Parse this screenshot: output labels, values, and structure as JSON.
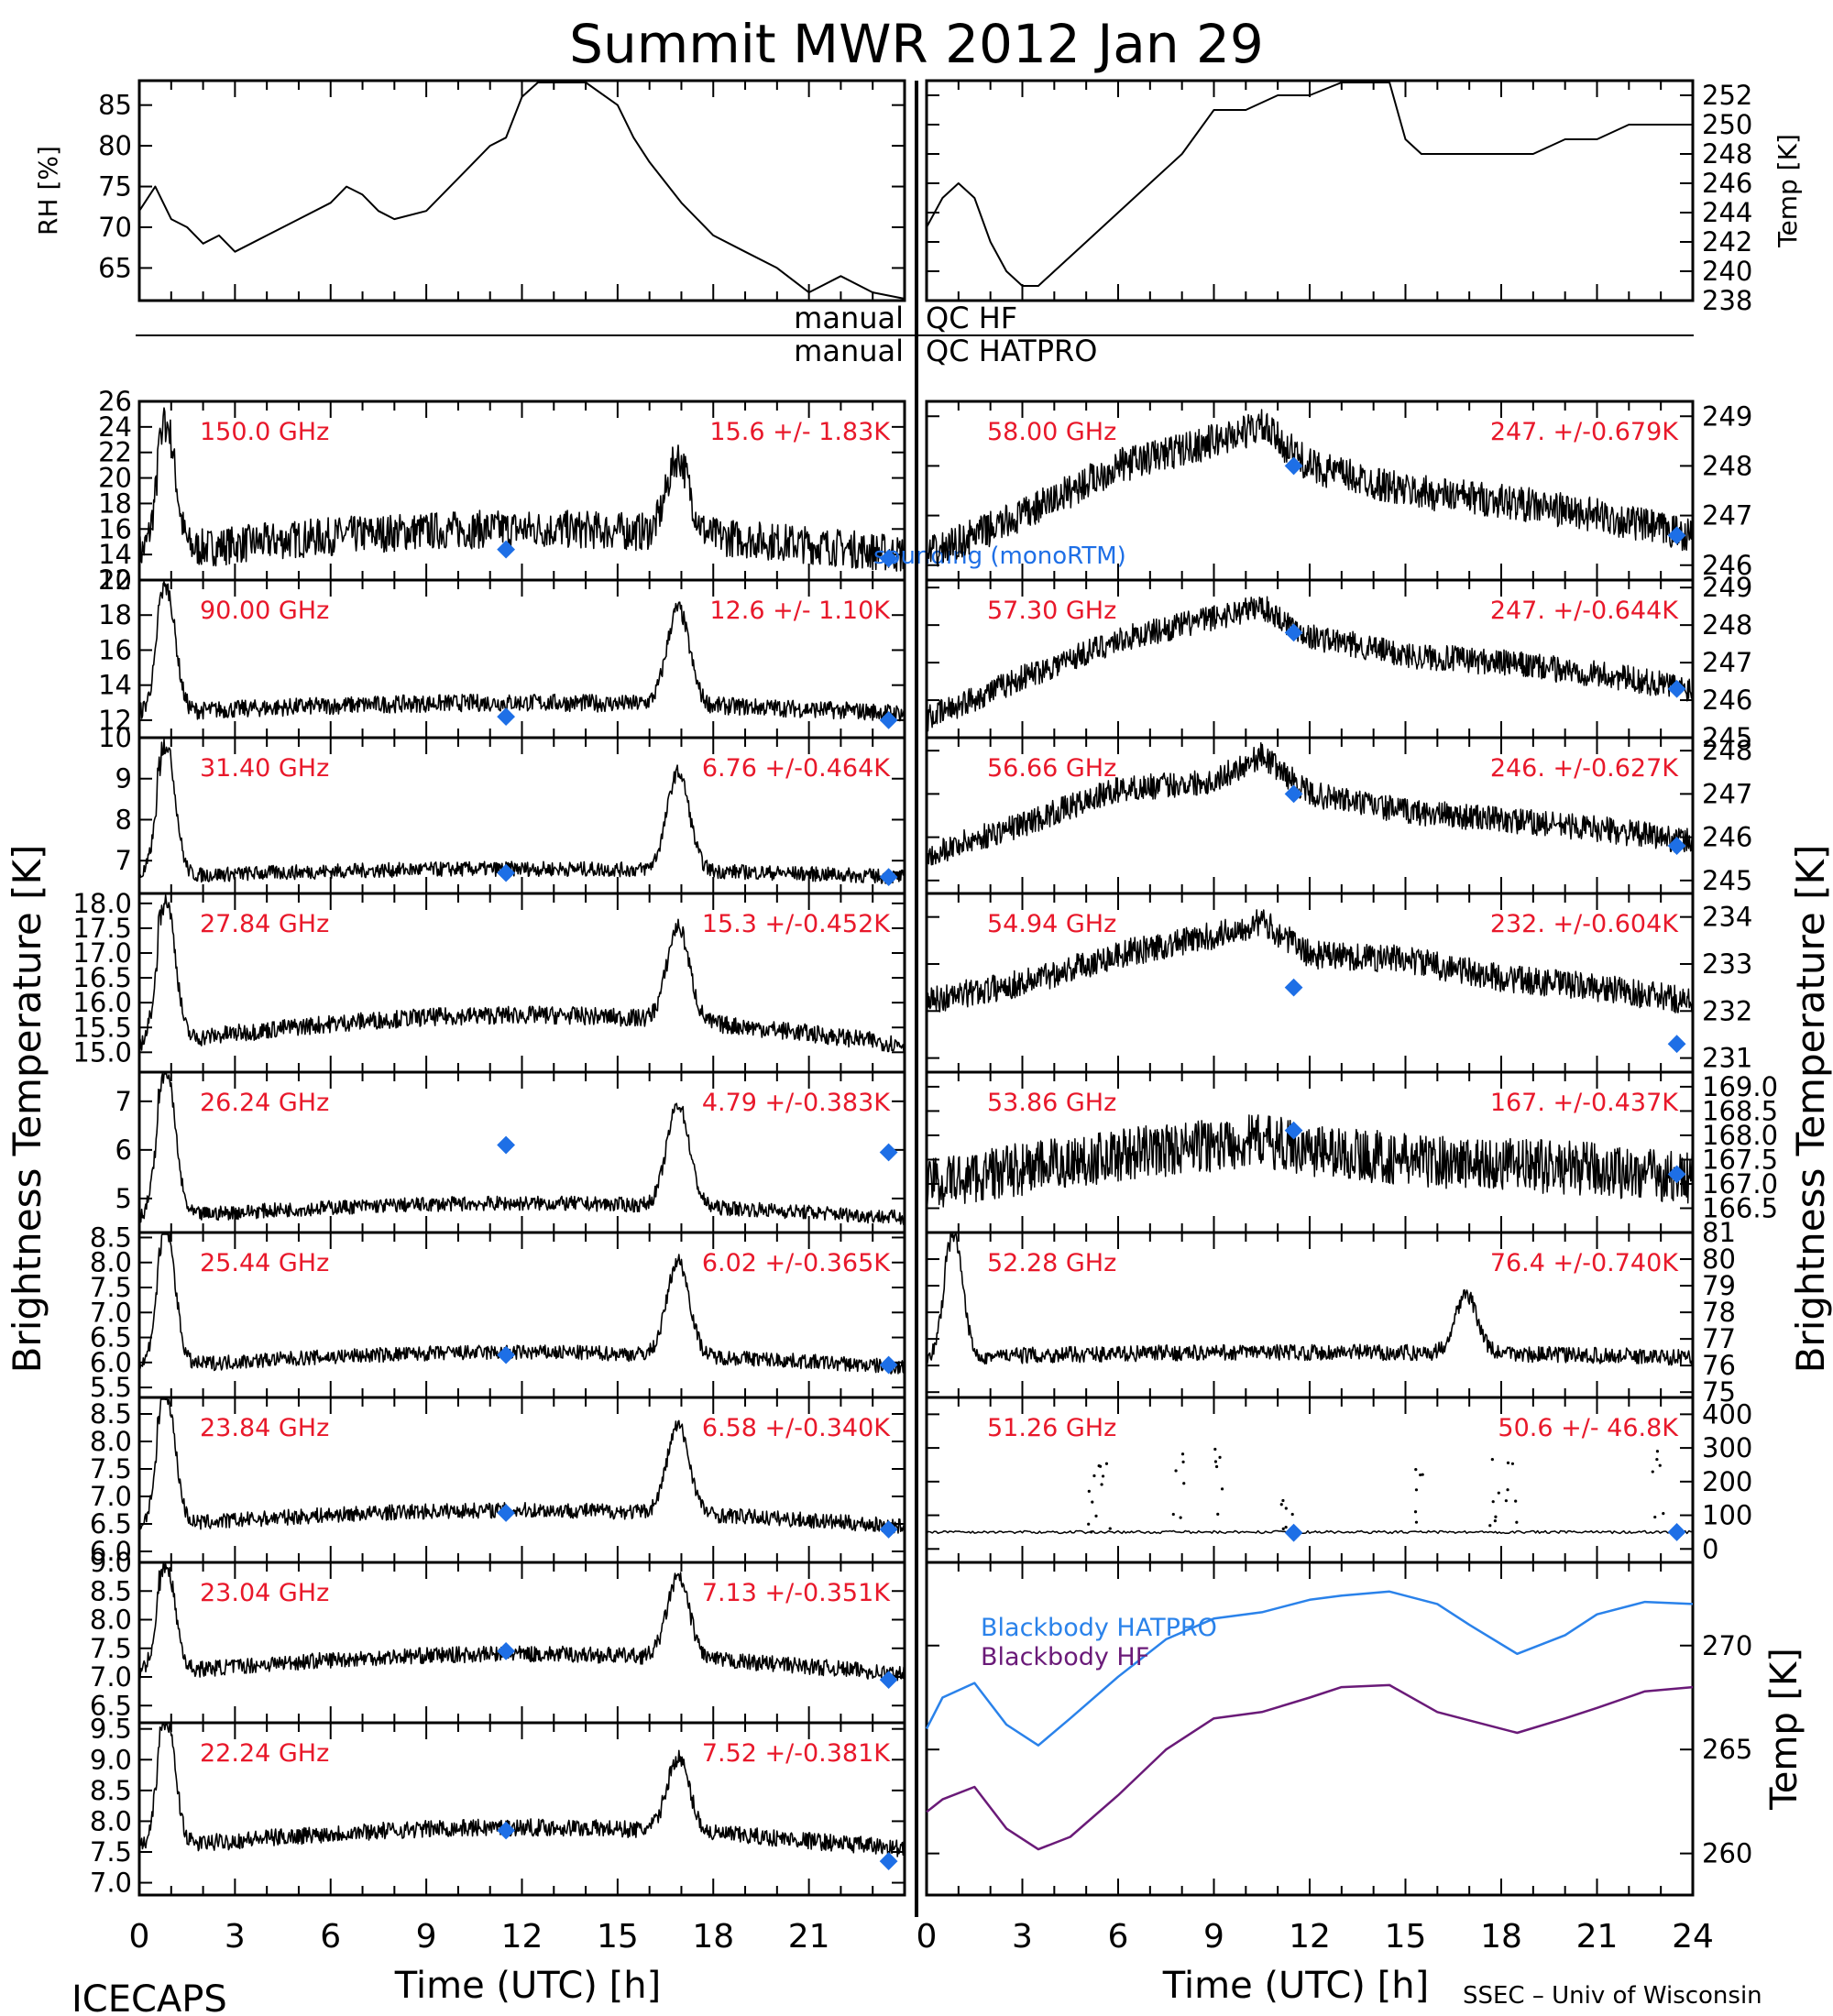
{
  "title": "Summit MWR 2012 Jan 29",
  "footer_left": "ICECAPS",
  "footer_right": "SSEC – Univ of Wisconsin",
  "xlabel": "Time (UTC) [h]",
  "left_axis_label": "Brightness Temperature [K]",
  "right_axis_label": "Brightness Temperature [K]",
  "colors": {
    "model": "#1e6fe6",
    "annotation": "#e8182a",
    "trace": "#000000",
    "bb_hatpro": "#2a82ea",
    "bb_hf": "#6a1a78"
  },
  "qc": {
    "hf_prefix": "manual",
    "hf_label": "QC HF",
    "hatpro_prefix": "manual",
    "hatpro_label": "QC HATPRO"
  },
  "chart_data": [
    {
      "id": "rh",
      "type": "line",
      "ylabel": "RH [%]",
      "ylim": [
        61,
        88
      ],
      "ticks": [
        "65",
        "70",
        "75",
        "80",
        "85"
      ],
      "tick_values": [
        65,
        70,
        75,
        80,
        85
      ],
      "x": [
        0,
        0.5,
        1,
        1.5,
        2,
        2.5,
        3,
        3.5,
        4,
        5,
        6,
        6.5,
        7,
        7.5,
        8,
        9,
        10,
        11,
        11.5,
        12,
        12.5,
        13,
        14,
        15,
        15.5,
        16,
        17,
        18,
        19,
        20,
        21,
        22,
        23,
        24
      ],
      "y": [
        72,
        75,
        71,
        70,
        68,
        69,
        67,
        68,
        69,
        71,
        73,
        75,
        74,
        72,
        71,
        72,
        76,
        80,
        81,
        86,
        88,
        88,
        88,
        85,
        81,
        78,
        73,
        69,
        67,
        65,
        62,
        64,
        62,
        61
      ]
    },
    {
      "id": "temp",
      "type": "line",
      "ylabel": "Temp [K]",
      "ylim": [
        238,
        253
      ],
      "ticks": [
        "238",
        "240",
        "242",
        "244",
        "246",
        "248",
        "250",
        "252"
      ],
      "tick_values": [
        238,
        240,
        242,
        244,
        246,
        248,
        250,
        252
      ],
      "x": [
        0,
        0.5,
        1,
        1.5,
        2,
        2.5,
        3,
        3.5,
        4,
        5,
        6,
        7,
        8,
        9,
        10,
        11,
        12,
        13,
        14,
        14.5,
        15,
        15.5,
        16,
        17,
        18,
        19,
        20,
        21,
        22,
        23,
        24
      ],
      "y": [
        243,
        245,
        246,
        245,
        242,
        240,
        239,
        239,
        240,
        242,
        244,
        246,
        248,
        251,
        251,
        252,
        252,
        253,
        253,
        253,
        249,
        248,
        248,
        248,
        248,
        248,
        249,
        249,
        250,
        250,
        250
      ]
    },
    {
      "id": "c150",
      "type": "line",
      "freq": "150.0 GHz",
      "stat": "15.6 +/- 1.83K",
      "ylim": [
        12,
        26
      ],
      "ticks": [
        "12",
        "14",
        "16",
        "18",
        "20",
        "22",
        "24",
        "26"
      ],
      "tick_values": [
        12,
        14,
        16,
        18,
        20,
        22,
        24,
        26
      ],
      "base": 15,
      "baseline": 14.0,
      "peak_start": 24,
      "drift": 2,
      "spike": 10,
      "peak2": 6,
      "noise": 1.5,
      "model_points": [
        [
          11.5,
          14.4
        ],
        [
          23.5,
          13.7
        ]
      ],
      "note": "sounding (monoRTM)"
    },
    {
      "id": "c90",
      "type": "line",
      "freq": "90.00 GHz",
      "stat": "12.6 +/- 1.10K",
      "ylim": [
        11,
        20
      ],
      "ticks": [
        "12",
        "14",
        "16",
        "18",
        "20"
      ],
      "tick_values": [
        12,
        14,
        16,
        18,
        20
      ],
      "base": 12.4,
      "baseline": 12.4,
      "peak_start": 19.5,
      "drift": 0.6,
      "spike": 7.5,
      "peak2": 5.5,
      "noise": 0.5,
      "model_points": [
        [
          11.5,
          12.2
        ],
        [
          23.5,
          12.0
        ]
      ]
    },
    {
      "id": "c314",
      "type": "line",
      "freq": "31.40 GHz",
      "stat": "6.76 +/-0.464K",
      "ylim": [
        6.2,
        10
      ],
      "ticks": [
        "7",
        "8",
        "9",
        "10"
      ],
      "tick_values": [
        7,
        8,
        9,
        10
      ],
      "base": 6.6,
      "baseline": 6.6,
      "peak_start": 9.8,
      "drift": 0.2,
      "spike": 3.1,
      "peak2": 2.4,
      "noise": 0.18,
      "model_points": [
        [
          11.5,
          6.7
        ],
        [
          23.5,
          6.6
        ]
      ]
    },
    {
      "id": "c2784",
      "type": "line",
      "freq": "27.84 GHz",
      "stat": "15.3 +/-0.452K",
      "ylim": [
        14.6,
        18.2
      ],
      "ticks": [
        "15.0",
        "15.5",
        "16.0",
        "16.5",
        "17.0",
        "17.5",
        "18.0"
      ],
      "tick_values": [
        15.0,
        15.5,
        16.0,
        16.5,
        17.0,
        17.5,
        18.0
      ],
      "base": 15.15,
      "baseline": 15.15,
      "peak_start": 18.0,
      "drift": 0.6,
      "spike": 2.6,
      "peak2": 1.9,
      "noise": 0.18,
      "model_points": []
    },
    {
      "id": "c2624",
      "type": "line",
      "freq": "26.24 GHz",
      "stat": "4.79 +/-0.383K",
      "ylim": [
        4.3,
        7.6
      ],
      "ticks": [
        "5",
        "6",
        "7"
      ],
      "tick_values": [
        5,
        6,
        7
      ],
      "base": 4.6,
      "baseline": 4.6,
      "peak_start": 7.6,
      "drift": 0.3,
      "spike": 2.8,
      "peak2": 2.1,
      "noise": 0.15,
      "model_points": [
        [
          11.5,
          6.1
        ],
        [
          23.5,
          5.95
        ]
      ]
    },
    {
      "id": "c2544",
      "type": "line",
      "freq": "25.44 GHz",
      "stat": "6.02 +/-0.365K",
      "ylim": [
        5.3,
        8.6
      ],
      "ticks": [
        "5.5",
        "6.0",
        "6.5",
        "7.0",
        "7.5",
        "8.0",
        "8.5"
      ],
      "tick_values": [
        5.5,
        6.0,
        6.5,
        7.0,
        7.5,
        8.0,
        8.5
      ],
      "base": 5.9,
      "baseline": 5.9,
      "peak_start": 8.6,
      "drift": 0.3,
      "spike": 2.6,
      "peak2": 1.9,
      "noise": 0.15,
      "model_points": [
        [
          11.5,
          6.15
        ],
        [
          23.5,
          5.95
        ]
      ]
    },
    {
      "id": "c2384",
      "type": "line",
      "freq": "23.84 GHz",
      "stat": "6.58 +/-0.340K",
      "ylim": [
        5.8,
        8.8
      ],
      "ticks": [
        "6.0",
        "6.5",
        "7.0",
        "7.5",
        "8.0",
        "8.5"
      ],
      "tick_values": [
        6.0,
        6.5,
        7.0,
        7.5,
        8.0,
        8.5
      ],
      "base": 6.45,
      "baseline": 6.45,
      "peak_start": 8.8,
      "drift": 0.3,
      "spike": 2.3,
      "peak2": 1.6,
      "noise": 0.14,
      "model_points": [
        [
          11.5,
          6.7
        ],
        [
          23.5,
          6.4
        ]
      ]
    },
    {
      "id": "c2304",
      "type": "line",
      "freq": "23.04 GHz",
      "stat": "7.13 +/-0.351K",
      "ylim": [
        6.2,
        9.0
      ],
      "ticks": [
        "6.5",
        "7.0",
        "7.5",
        "8.0",
        "8.5",
        "9.0"
      ],
      "tick_values": [
        6.5,
        7.0,
        7.5,
        8.0,
        8.5,
        9.0
      ],
      "base": 7.1,
      "baseline": 7.05,
      "peak_start": 8.9,
      "drift": 0.35,
      "spike": 1.9,
      "peak2": 1.4,
      "noise": 0.14,
      "model_points": [
        [
          11.5,
          7.45
        ],
        [
          23.5,
          6.95
        ]
      ]
    },
    {
      "id": "c2224",
      "type": "line",
      "freq": "22.24 GHz",
      "stat": "7.52 +/-0.381K",
      "ylim": [
        6.8,
        9.6
      ],
      "ticks": [
        "7.0",
        "7.5",
        "8.0",
        "8.5",
        "9.0",
        "9.5"
      ],
      "tick_values": [
        7.0,
        7.5,
        8.0,
        8.5,
        9.0,
        9.5
      ],
      "base": 7.6,
      "baseline": 7.55,
      "peak_start": 9.6,
      "drift": 0.35,
      "spike": 1.8,
      "peak2": 1.2,
      "noise": 0.14,
      "model_points": [
        [
          11.5,
          7.85
        ],
        [
          23.5,
          7.35
        ]
      ]
    },
    {
      "id": "c5800",
      "type": "line",
      "freq": "58.00 GHz",
      "stat": "247. +/-0.679K",
      "ylim": [
        245.7,
        249.3
      ],
      "ticks": [
        "246",
        "247",
        "248",
        "249"
      ],
      "tick_values": [
        246,
        247,
        248,
        249
      ],
      "profile_x": [
        0,
        3,
        6,
        9,
        10.5,
        12,
        15,
        18,
        21,
        24
      ],
      "profile_y": [
        246.2,
        247.0,
        248.0,
        248.5,
        248.8,
        248.0,
        247.5,
        247.3,
        247.0,
        246.6
      ],
      "noise": 0.35,
      "model_points": [
        [
          11.5,
          248.0
        ],
        [
          23.5,
          246.6
        ]
      ]
    },
    {
      "id": "c5730",
      "type": "line",
      "freq": "57.30 GHz",
      "stat": "247. +/-0.644K",
      "ylim": [
        245,
        249.2
      ],
      "ticks": [
        "245",
        "246",
        "247",
        "248",
        "249"
      ],
      "tick_values": [
        245,
        246,
        247,
        248,
        249
      ],
      "profile_x": [
        0,
        3,
        6,
        9,
        10.5,
        12,
        15,
        18,
        21,
        24
      ],
      "profile_y": [
        245.5,
        246.6,
        247.6,
        248.2,
        248.5,
        247.7,
        247.2,
        247.0,
        246.7,
        246.3
      ],
      "noise": 0.35,
      "model_points": [
        [
          11.5,
          247.8
        ],
        [
          23.5,
          246.3
        ]
      ]
    },
    {
      "id": "c5666",
      "type": "line",
      "freq": "56.66 GHz",
      "stat": "246. +/-0.627K",
      "ylim": [
        244.7,
        248.3
      ],
      "ticks": [
        "245",
        "246",
        "247",
        "248"
      ],
      "tick_values": [
        245,
        246,
        247,
        248
      ],
      "profile_x": [
        0,
        3,
        6,
        9,
        10.5,
        12,
        15,
        18,
        21,
        24
      ],
      "profile_y": [
        245.6,
        246.3,
        247.1,
        247.3,
        247.9,
        247.0,
        246.6,
        246.4,
        246.2,
        245.9
      ],
      "noise": 0.3,
      "model_points": [
        [
          11.5,
          247.0
        ],
        [
          23.5,
          245.8
        ]
      ]
    },
    {
      "id": "c5494",
      "type": "line",
      "freq": "54.94 GHz",
      "stat": "232. +/-0.604K",
      "ylim": [
        230.7,
        234.5
      ],
      "ticks": [
        "231",
        "232",
        "233",
        "234"
      ],
      "tick_values": [
        231,
        232,
        233,
        234
      ],
      "profile_x": [
        0,
        3,
        6,
        9,
        10.5,
        12,
        15,
        18,
        21,
        24
      ],
      "profile_y": [
        232.2,
        232.6,
        233.2,
        233.6,
        233.9,
        233.2,
        233.1,
        232.7,
        232.5,
        232.2
      ],
      "noise": 0.3,
      "model_points": [
        [
          11.5,
          232.5
        ],
        [
          23.5,
          231.3
        ]
      ]
    },
    {
      "id": "c5386",
      "type": "line",
      "freq": "53.86 GHz",
      "stat": "167. +/-0.437K",
      "ylim": [
        166.0,
        169.3
      ],
      "ticks": [
        "166.5",
        "167.0",
        "167.5",
        "168.0",
        "168.5",
        "169.0"
      ],
      "tick_values": [
        166.5,
        167.0,
        167.5,
        168.0,
        168.5,
        169.0
      ],
      "profile_x": [
        0,
        3,
        6,
        9,
        10.5,
        12,
        15,
        18,
        21,
        24
      ],
      "profile_y": [
        167.0,
        167.3,
        167.6,
        167.8,
        167.9,
        167.7,
        167.5,
        167.4,
        167.3,
        167.1
      ],
      "noise": 0.55,
      "model_points": [
        [
          11.5,
          168.1
        ],
        [
          23.5,
          167.2
        ]
      ]
    },
    {
      "id": "c5228",
      "type": "line",
      "freq": "52.28 GHz",
      "stat": "76.4 +/-0.740K",
      "ylim": [
        74.8,
        81.0
      ],
      "ticks": [
        "75",
        "76",
        "77",
        "78",
        "79",
        "80",
        "81"
      ],
      "tick_values": [
        75,
        76,
        77,
        78,
        79,
        80,
        81
      ],
      "base": 76.3,
      "baseline": 76.3,
      "peak_start": 80.8,
      "drift": 0.2,
      "spike": 4.2,
      "peak2": 2.2,
      "noise": 0.3,
      "model_points": []
    },
    {
      "id": "c5126",
      "type": "scatter",
      "freq": "51.26 GHz",
      "stat": "50.6 +/- 46.8K",
      "ylim": [
        -40,
        450
      ],
      "ticks": [
        "0",
        "100",
        "200",
        "300",
        "400"
      ],
      "tick_values": [
        0,
        100,
        200,
        300,
        400
      ],
      "base": 50,
      "model_points": [
        [
          11.5,
          48
        ],
        [
          23.5,
          50
        ]
      ]
    },
    {
      "id": "blackbody",
      "type": "line",
      "ylabel": "Temp [K]",
      "ylim": [
        258,
        274
      ],
      "ticks": [
        "260",
        "265",
        "270"
      ],
      "tick_values": [
        260,
        265,
        270
      ],
      "series": [
        {
          "name": "Blackbody HATPRO",
          "x": [
            0,
            0.5,
            1.5,
            2.5,
            3.5,
            4.5,
            6,
            7.5,
            9,
            10.5,
            12,
            13,
            14.5,
            16,
            17,
            18.5,
            20,
            21,
            22.5,
            24
          ],
          "y": [
            266.0,
            267.5,
            268.2,
            266.2,
            265.2,
            266.5,
            268.5,
            270.3,
            271.3,
            271.6,
            272.2,
            272.4,
            272.6,
            272.0,
            271.0,
            269.6,
            270.5,
            271.5,
            272.1,
            272.0
          ]
        },
        {
          "name": "Blackbody HF",
          "x": [
            0,
            0.5,
            1.5,
            2.5,
            3.5,
            4.5,
            6,
            7.5,
            9,
            10.5,
            12,
            13,
            14.5,
            16,
            17,
            18.5,
            20,
            21,
            22.5,
            24
          ],
          "y": [
            262.0,
            262.6,
            263.2,
            261.2,
            260.2,
            260.8,
            262.8,
            265.0,
            266.5,
            266.8,
            267.5,
            268.0,
            268.1,
            266.8,
            266.4,
            265.8,
            266.5,
            267.0,
            267.8,
            268.0
          ]
        }
      ]
    }
  ],
  "x_ticks": [
    "0",
    "3",
    "6",
    "9",
    "12",
    "15",
    "18",
    "21",
    "24"
  ],
  "x_tick_values": [
    0,
    3,
    6,
    9,
    12,
    15,
    18,
    21,
    24
  ]
}
